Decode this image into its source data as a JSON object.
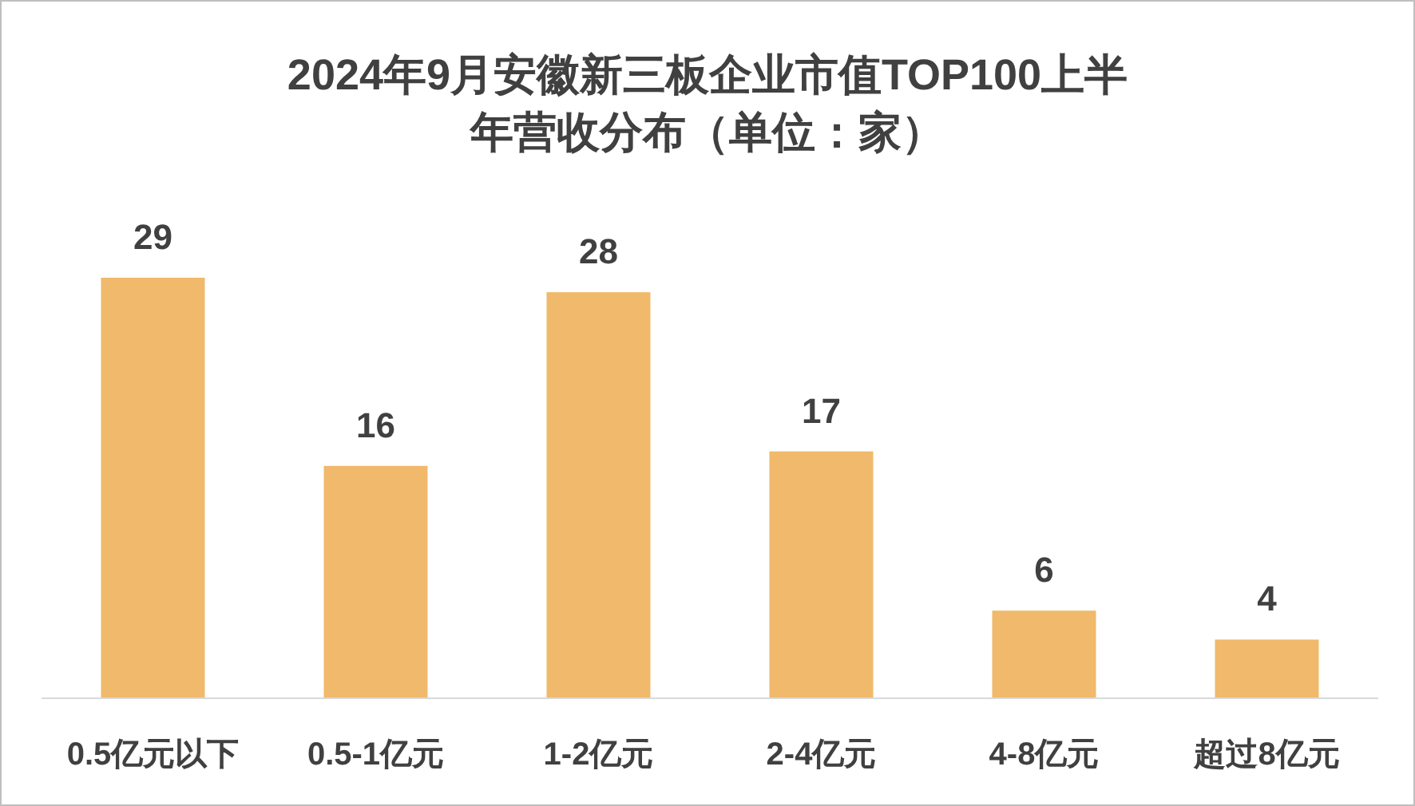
{
  "chart_data": {
    "type": "bar",
    "title": "2024年9月安徽新三板企业市值TOP100上半年营收分布（单位：家）",
    "categories": [
      "0.5亿元以下",
      "0.5-1亿元",
      "1-2亿元",
      "2-4亿元",
      "4-8亿元",
      "超过8亿元"
    ],
    "values": [
      29,
      16,
      28,
      17,
      6,
      4
    ],
    "color": "#f0b96b",
    "data_labels": true
  }
}
